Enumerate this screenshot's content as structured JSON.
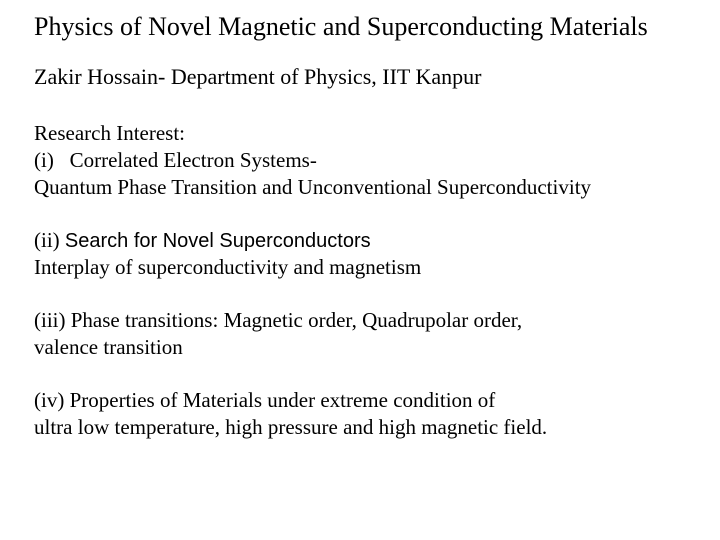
{
  "title": "Physics of Novel Magnetic and Superconducting Materials",
  "author": "Zakir Hossain- Department of Physics, IIT Kanpur",
  "section1": {
    "heading": "Research Interest:",
    "line1": "(i)   Correlated Electron Systems-",
    "line2": "Quantum Phase Transition and Unconventional Superconductivity"
  },
  "section2": {
    "prefix": "(ii) ",
    "heading_arial": "Search for Novel Superconductors",
    "line1": "Interplay of superconductivity and magnetism"
  },
  "section3": {
    "line1": "(iii) Phase transitions: Magnetic order, Quadrupolar order,",
    "line2": "valence transition"
  },
  "section4": {
    "line1": "(iv) Properties of Materials under extreme condition of",
    "line2": "ultra low temperature, high pressure and high magnetic field."
  },
  "colors": {
    "background": "#ffffff",
    "text": "#000000"
  }
}
